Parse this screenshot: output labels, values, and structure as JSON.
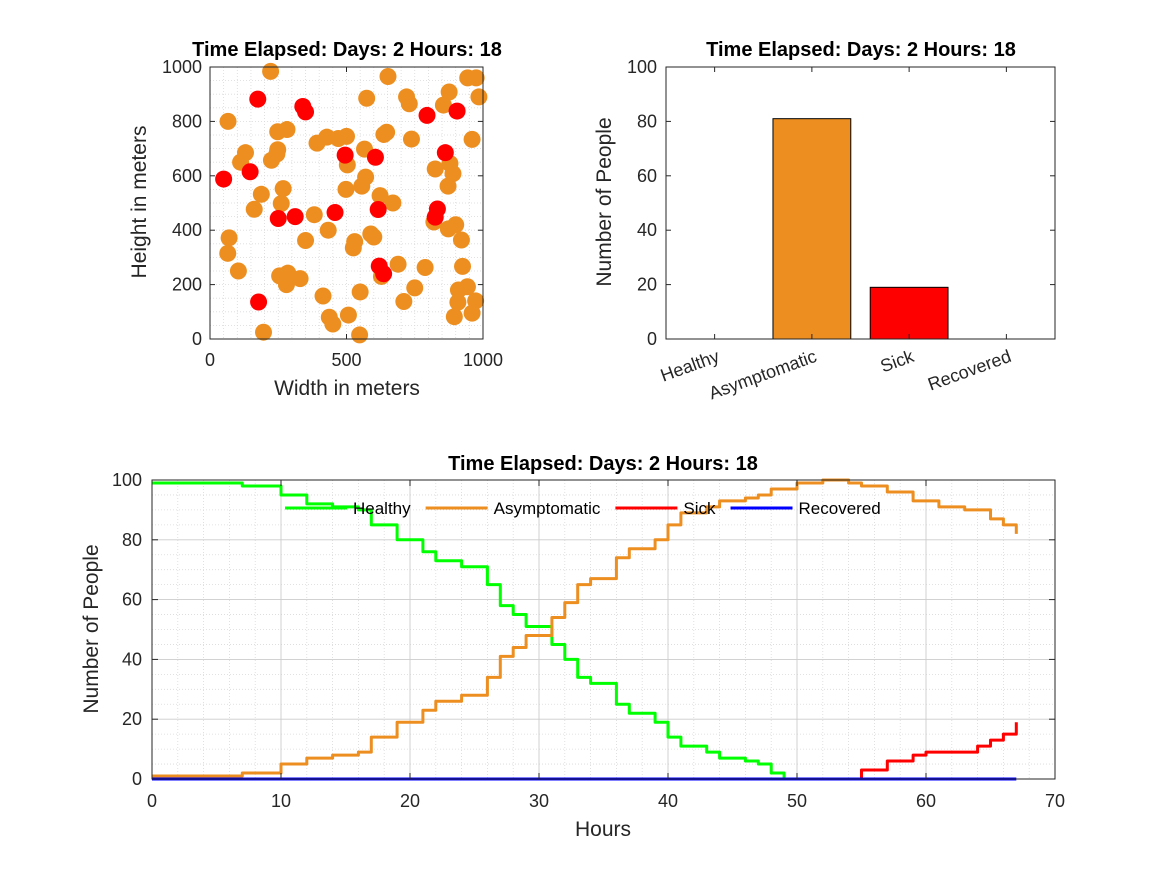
{
  "chart_data": [
    {
      "type": "scatter",
      "title": "Time Elapsed: Days: 2 Hours: 18",
      "xlabel": "Width in meters",
      "ylabel": "Height in meters",
      "xlim": [
        0,
        1000
      ],
      "ylim": [
        0,
        1000
      ],
      "xticks": [
        "0",
        "500",
        "1000"
      ],
      "yticks": [
        "0",
        "200",
        "400",
        "600",
        "800",
        "1000"
      ],
      "grid": "minor dotted",
      "series": [
        {
          "color": "#ED8F20",
          "points": [
            [
              222,
              984
            ],
            [
              652,
              965
            ],
            [
              944,
              960
            ],
            [
              975,
              960
            ],
            [
              66,
              800
            ],
            [
              392,
              720
            ],
            [
              574,
              885
            ],
            [
              876,
              908
            ],
            [
              985,
              890
            ],
            [
              720,
              890
            ],
            [
              730,
              865
            ],
            [
              855,
              860
            ],
            [
              248,
              762
            ],
            [
              282,
              770
            ],
            [
              428,
              742
            ],
            [
              470,
              737
            ],
            [
              500,
              745
            ],
            [
              647,
              760
            ],
            [
              637,
              752
            ],
            [
              960,
              734
            ],
            [
              738,
              735
            ],
            [
              248,
              696
            ],
            [
              245,
              680
            ],
            [
              130,
              685
            ],
            [
              112,
              650
            ],
            [
              225,
              657
            ],
            [
              566,
              698
            ],
            [
              503,
              640
            ],
            [
              879,
              645
            ],
            [
              890,
              608
            ],
            [
              825,
              625
            ],
            [
              188,
              532
            ],
            [
              268,
              553
            ],
            [
              498,
              550
            ],
            [
              556,
              562
            ],
            [
              570,
              595
            ],
            [
              623,
              527
            ],
            [
              670,
              500
            ],
            [
              872,
              562
            ],
            [
              162,
              477
            ],
            [
              261,
              498
            ],
            [
              382,
              457
            ],
            [
              900,
              420
            ],
            [
              873,
              405
            ],
            [
              820,
              430
            ],
            [
              70,
              372
            ],
            [
              65,
              315
            ],
            [
              350,
              362
            ],
            [
              433,
              400
            ],
            [
              530,
              358
            ],
            [
              525,
              335
            ],
            [
              589,
              386
            ],
            [
              600,
              375
            ],
            [
              921,
              364
            ],
            [
              104,
              250
            ],
            [
              255,
              232
            ],
            [
              285,
              242
            ],
            [
              290,
              220
            ],
            [
              280,
              200
            ],
            [
              330,
              222
            ],
            [
              628,
              230
            ],
            [
              689,
              275
            ],
            [
              788,
              263
            ],
            [
              925,
              267
            ],
            [
              414,
              158
            ],
            [
              550,
              173
            ],
            [
              750,
              188
            ],
            [
              910,
              180
            ],
            [
              943,
              192
            ],
            [
              973,
              140
            ],
            [
              960,
              95
            ],
            [
              895,
              82
            ],
            [
              710,
              138
            ],
            [
              908,
              135
            ],
            [
              437,
              80
            ],
            [
              450,
              55
            ],
            [
              507,
              88
            ],
            [
              548,
              15
            ],
            [
              196,
              25
            ]
          ]
        },
        {
          "color": "#FF0000",
          "points": [
            [
              175,
              882
            ],
            [
              340,
              855
            ],
            [
              350,
              835
            ],
            [
              905,
              838
            ],
            [
              795,
              822
            ],
            [
              50,
              588
            ],
            [
              147,
              615
            ],
            [
              495,
              676
            ],
            [
              606,
              668
            ],
            [
              862,
              685
            ],
            [
              250,
              443
            ],
            [
              312,
              450
            ],
            [
              458,
              465
            ],
            [
              616,
              476
            ],
            [
              833,
              478
            ],
            [
              825,
              448
            ],
            [
              620,
              268
            ],
            [
              636,
              240
            ],
            [
              178,
              136
            ]
          ]
        }
      ]
    },
    {
      "type": "bar",
      "title": "Time Elapsed: Days: 2 Hours: 18",
      "xlabel": "",
      "ylabel": "Number of People",
      "ylim": [
        0,
        100
      ],
      "yticks": [
        "0",
        "20",
        "40",
        "60",
        "80",
        "100"
      ],
      "categories": [
        "Healthy",
        "Asymptomatic",
        "Sick",
        "Recovered"
      ],
      "values": [
        0,
        81,
        19,
        0
      ],
      "colors": [
        "#00FF00",
        "#ED8F20",
        "#FF0000",
        "#0000FF"
      ]
    },
    {
      "type": "line",
      "title": "Time Elapsed: Days: 2 Hours: 18",
      "xlabel": "Hours",
      "ylabel": "Number of People",
      "xlim": [
        0,
        70
      ],
      "ylim": [
        0,
        100
      ],
      "xticks": [
        "0",
        "10",
        "20",
        "30",
        "40",
        "50",
        "60",
        "70"
      ],
      "yticks": [
        "0",
        "20",
        "40",
        "60",
        "80",
        "100"
      ],
      "grid": "major and minor dotted",
      "legend": "top-center horizontal inside",
      "series": [
        {
          "name": "Healthy",
          "color": "#00FF00",
          "points": [
            [
              0,
              99
            ],
            [
              6,
              99
            ],
            [
              7,
              98
            ],
            [
              8,
              98
            ],
            [
              10,
              95
            ],
            [
              12,
              92
            ],
            [
              14,
              91
            ],
            [
              16,
              90
            ],
            [
              17,
              85
            ],
            [
              19,
              80
            ],
            [
              21,
              76
            ],
            [
              22,
              73
            ],
            [
              24,
              71
            ],
            [
              26,
              65
            ],
            [
              27,
              58
            ],
            [
              28,
              55
            ],
            [
              29,
              51
            ],
            [
              31,
              45
            ],
            [
              32,
              40
            ],
            [
              33,
              34
            ],
            [
              34,
              32
            ],
            [
              36,
              25
            ],
            [
              37,
              22
            ],
            [
              39,
              19
            ],
            [
              40,
              14
            ],
            [
              41,
              11
            ],
            [
              43,
              9
            ],
            [
              44,
              7
            ],
            [
              46,
              6
            ],
            [
              47,
              5
            ],
            [
              48,
              2
            ],
            [
              49,
              0
            ]
          ]
        },
        {
          "name": "Asymptomatic",
          "color": "#ED8F20",
          "points": [
            [
              0,
              1
            ],
            [
              6,
              1
            ],
            [
              7,
              2
            ],
            [
              8,
              2
            ],
            [
              10,
              5
            ],
            [
              12,
              7
            ],
            [
              14,
              8
            ],
            [
              16,
              9
            ],
            [
              17,
              14
            ],
            [
              19,
              19
            ],
            [
              21,
              23
            ],
            [
              22,
              26
            ],
            [
              24,
              28
            ],
            [
              26,
              34
            ],
            [
              27,
              41
            ],
            [
              28,
              44
            ],
            [
              29,
              48
            ],
            [
              31,
              54
            ],
            [
              32,
              59
            ],
            [
              33,
              65
            ],
            [
              34,
              67
            ],
            [
              36,
              74
            ],
            [
              37,
              77
            ],
            [
              39,
              80
            ],
            [
              40,
              85
            ],
            [
              41,
              89
            ],
            [
              43,
              91
            ],
            [
              44,
              93
            ],
            [
              46,
              94
            ],
            [
              47,
              95
            ],
            [
              48,
              97
            ],
            [
              50,
              99
            ],
            [
              52,
              100
            ],
            [
              54,
              99
            ],
            [
              55,
              98
            ],
            [
              57,
              96
            ],
            [
              59,
              93
            ],
            [
              61,
              91
            ],
            [
              63,
              90
            ],
            [
              65,
              87
            ],
            [
              66,
              85
            ],
            [
              67,
              82
            ]
          ]
        },
        {
          "name": "Sick",
          "color": "#FF0000",
          "points": [
            [
              0,
              0
            ],
            [
              54,
              0
            ],
            [
              55,
              3
            ],
            [
              57,
              6
            ],
            [
              59,
              8
            ],
            [
              60,
              9
            ],
            [
              62,
              9
            ],
            [
              64,
              11
            ],
            [
              65,
              13
            ],
            [
              66,
              15
            ],
            [
              67,
              19
            ]
          ]
        },
        {
          "name": "Recovered",
          "color": "#0000FF",
          "points": [
            [
              0,
              0
            ],
            [
              67,
              0
            ]
          ]
        }
      ]
    }
  ]
}
